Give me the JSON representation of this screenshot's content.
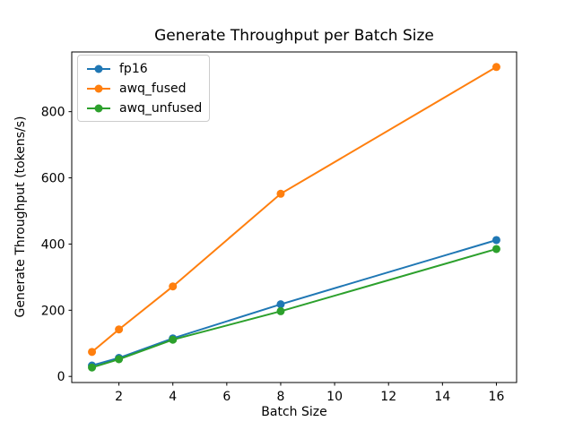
{
  "chart_data": {
    "type": "line",
    "title": "Generate Throughput per Batch Size",
    "xlabel": "Batch Size",
    "ylabel": "Generate Throughput (tokens/s)",
    "x": [
      1,
      2,
      4,
      8,
      16
    ],
    "series": [
      {
        "name": "fp16",
        "color": "#1f77b4",
        "values": [
          33,
          56,
          115,
          218,
          412
        ]
      },
      {
        "name": "awq_fused",
        "color": "#ff7f0e",
        "values": [
          74,
          142,
          272,
          552,
          935
        ]
      },
      {
        "name": "awq_unfused",
        "color": "#2ca02c",
        "values": [
          27,
          52,
          111,
          197,
          385
        ]
      }
    ],
    "marker": "o",
    "xticks": [
      2,
      4,
      6,
      8,
      10,
      12,
      14,
      16
    ],
    "yticks": [
      0,
      200,
      400,
      600,
      800
    ],
    "xlim": [
      0.25,
      16.75
    ],
    "ylim": [
      -18.4,
      980.4
    ],
    "grid": false,
    "legend_position": "upper-left",
    "axis_color": "#000000",
    "background_color": "#ffffff"
  }
}
